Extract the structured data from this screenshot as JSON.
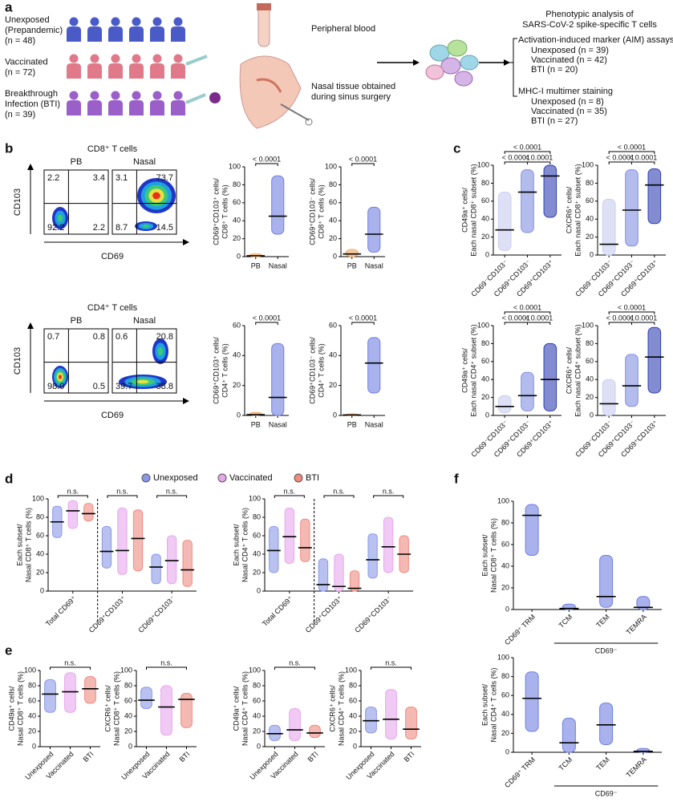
{
  "panel_a": {
    "label": "a",
    "groups": [
      {
        "name": [
          "Unexposed",
          "(Prepandemic)"
        ],
        "n": "(n = 48)"
      },
      {
        "name": [
          "Vaccinated"
        ],
        "n": "(n = 72)"
      },
      {
        "name": [
          "Breakthrough",
          "Infection (BTI)"
        ],
        "n": "(n = 39)"
      }
    ],
    "sample_labels": {
      "blood": "Peripheral blood",
      "nasal": [
        "Nasal tissue obtained",
        "during sinus surgery"
      ]
    },
    "analysis": {
      "title": [
        "Phenotypic analysis of",
        "SARS-CoV-2 spike-specific T cells"
      ],
      "assays": [
        {
          "name": "Activation-induced marker (AIM) assays",
          "items": [
            "Unexposed (n = 39)",
            "Vaccinated (n = 42)",
            "BTI (n = 20)"
          ]
        },
        {
          "name": "MHC-I multimer staining",
          "items": [
            "Unexposed (n = 8)",
            "Vaccinated (n = 35)",
            "BTI (n = 27)"
          ]
        }
      ]
    }
  },
  "panel_b": {
    "label": "b",
    "rows": [
      {
        "title": "CD8⁺ T cells",
        "flow": {
          "samples": [
            "PB",
            "Nasal"
          ],
          "quadrants": [
            [
              "2.2",
              "3.4",
              "92.2",
              "2.2"
            ],
            [
              "3.1",
              "73.7",
              "8.7",
              "14.5"
            ]
          ],
          "xlabel": "CD69",
          "ylabel": "CD103"
        },
        "plots": [
          {
            "ylabel": [
              "CD69⁺CD103⁺ cells/",
              "CD8⁺ T cells (%)"
            ],
            "ylim": [
              0,
              100
            ],
            "yticks": [
              0,
              20,
              40,
              60,
              80,
              100
            ],
            "categories": [
              "PB",
              "Nasal"
            ],
            "groups": [
              {
                "color": [
                  "#f0a860",
                  "#6f7fe0"
                ],
                "median": [
                  1,
                  45
                ],
                "min": [
                  0,
                  25
                ],
                "max": [
                  3,
                  90
                ]
              }
            ],
            "annotations": [
              "< 0.0001"
            ]
          },
          {
            "ylabel": [
              "CD69⁺CD103⁻ cells/",
              "CD8⁺ T cells (%)"
            ],
            "ylim": [
              0,
              100
            ],
            "yticks": [
              0,
              20,
              40,
              60,
              80,
              100
            ],
            "categories": [
              "PB",
              "Nasal"
            ],
            "groups": [
              {
                "color": [
                  "#f0a860",
                  "#6f7fe0"
                ],
                "median": [
                  3,
                  25
                ],
                "min": [
                  0,
                  5
                ],
                "max": [
                  8,
                  55
                ]
              }
            ],
            "annotations": [
              "< 0.0001"
            ]
          }
        ]
      },
      {
        "title": "CD4⁺ T cells",
        "flow": {
          "samples": [
            "PB",
            "Nasal"
          ],
          "quadrants": [
            [
              "0.7",
              "0.8",
              "98.0",
              "0.5"
            ],
            [
              "0.6",
              "20.8",
              "39.7",
              "38.8"
            ]
          ],
          "xlabel": "CD69",
          "ylabel": "CD103"
        },
        "plots": [
          {
            "ylabel": [
              "CD69⁺CD103⁺ cells/",
              "CD4⁺ T cells (%)"
            ],
            "ylim": [
              0,
              60
            ],
            "yticks": [
              0,
              20,
              40,
              60
            ],
            "categories": [
              "PB",
              "Nasal"
            ],
            "groups": [
              {
                "color": [
                  "#f0a860",
                  "#6f7fe0"
                ],
                "median": [
                  0.5,
                  12
                ],
                "min": [
                  0,
                  0
                ],
                "max": [
                  2,
                  48
                ]
              }
            ],
            "annotations": [
              "< 0.0001"
            ]
          },
          {
            "ylabel": [
              "CD69⁺CD103⁻ cells/",
              "CD4⁺ T cells (%)"
            ],
            "ylim": [
              0,
              60
            ],
            "yticks": [
              0,
              20,
              40,
              60
            ],
            "categories": [
              "PB",
              "Nasal"
            ],
            "groups": [
              {
                "color": [
                  "#f0a860",
                  "#6f7fe0"
                ],
                "median": [
                  0.3,
                  35
                ],
                "min": [
                  0,
                  15
                ],
                "max": [
                  1,
                  52
                ]
              }
            ],
            "annotations": [
              "< 0.0001"
            ]
          }
        ]
      }
    ]
  },
  "panel_c": {
    "label": "c",
    "plots": [
      {
        "ylabel": [
          "CD49a⁺ cells/",
          "Each nasal CD8⁺ subset (%)"
        ],
        "ylim": [
          0,
          100
        ],
        "yticks": [
          0,
          20,
          40,
          60,
          80,
          100
        ],
        "categories": [
          "CD69⁻CD103⁻",
          "CD69⁺CD103⁻",
          "CD69⁺CD103⁺"
        ],
        "groups": [
          {
            "color": [
              "#c8cdf0",
              "#8090e0",
              "#3040b0"
            ],
            "median": [
              28,
              70,
              88
            ],
            "min": [
              5,
              25,
              42
            ],
            "max": [
              70,
              95,
              100
            ]
          }
        ],
        "annotations": [
          "< 0.0001",
          "< 0.0001",
          "< 0.0001"
        ]
      },
      {
        "ylabel": [
          "CXCR6⁺ cells/",
          "Each nasal CD8⁺ subset (%)"
        ],
        "ylim": [
          0,
          100
        ],
        "yticks": [
          0,
          20,
          40,
          60,
          80,
          100
        ],
        "categories": [
          "CD69⁻CD103⁻",
          "CD69⁺CD103⁻",
          "CD69⁺CD103⁺"
        ],
        "groups": [
          {
            "color": [
              "#c8cdf0",
              "#8090e0",
              "#3040b0"
            ],
            "median": [
              12,
              50,
              78
            ],
            "min": [
              0,
              10,
              35
            ],
            "max": [
              62,
              95,
              96
            ]
          }
        ],
        "annotations": [
          "< 0.0001",
          "< 0.0001",
          "< 0.0001"
        ]
      },
      {
        "ylabel": [
          "CD49a⁺ cells/",
          "Each nasal CD4⁺ subset (%)"
        ],
        "ylim": [
          0,
          100
        ],
        "yticks": [
          0,
          20,
          40,
          60,
          80,
          100
        ],
        "categories": [
          "CD69⁻CD103⁻",
          "CD69⁺CD103⁻",
          "CD69⁺CD103⁺"
        ],
        "groups": [
          {
            "color": [
              "#c8cdf0",
              "#8090e0",
              "#3040b0"
            ],
            "median": [
              10,
              22,
              40
            ],
            "min": [
              3,
              5,
              5
            ],
            "max": [
              22,
              48,
              80
            ]
          }
        ],
        "annotations": [
          "< 0.0001",
          "< 0.0001",
          "< 0.0001"
        ]
      },
      {
        "ylabel": [
          "CXCR6⁺ cells/",
          "Each nasal CD4⁺ subset (%)"
        ],
        "ylim": [
          0,
          100
        ],
        "yticks": [
          0,
          20,
          40,
          60,
          80,
          100
        ],
        "categories": [
          "CD69⁻CD103⁻",
          "CD69⁺CD103⁻",
          "CD69⁺CD103⁺"
        ],
        "groups": [
          {
            "color": [
              "#c8cdf0",
              "#8090e0",
              "#3040b0"
            ],
            "median": [
              13,
              33,
              65
            ],
            "min": [
              0,
              10,
              25
            ],
            "max": [
              40,
              68,
              98
            ]
          }
        ],
        "annotations": [
          "< 0.0001",
          "< 0.0001",
          "< 0.0001"
        ]
      }
    ]
  },
  "panel_d": {
    "label": "d",
    "legend": [
      {
        "name": "Unexposed",
        "color": "#8a98e6"
      },
      {
        "name": "Vaccinated",
        "color": "#e6a6ec"
      },
      {
        "name": "BTI",
        "color": "#ee8a80"
      }
    ],
    "plots": [
      {
        "ylabel": [
          "Each subset/",
          "Nasal CD8⁺ T cells (%)"
        ],
        "ylim": [
          0,
          100
        ],
        "yticks": [
          0,
          20,
          40,
          60,
          80,
          100
        ],
        "categories": [
          "Total CD69⁺",
          "CD69⁺CD103⁺",
          "CD69⁺CD103⁻"
        ],
        "groups": [
          {
            "median": [
              75,
              43,
              26
            ],
            "min": [
              58,
              25,
              8
            ],
            "max": [
              92,
              70,
              40
            ]
          },
          {
            "median": [
              87,
              44,
              33
            ],
            "min": [
              68,
              18,
              8
            ],
            "max": [
              98,
              90,
              60
            ]
          },
          {
            "median": [
              84,
              57,
              23
            ],
            "min": [
              76,
              22,
              5
            ],
            "max": [
              95,
              88,
              55
            ]
          }
        ],
        "annotations": [
          "n.s.",
          "n.s.",
          "n.s."
        ]
      },
      {
        "ylabel": [
          "Each subset/",
          "Nasal CD4⁺ T cells (%)"
        ],
        "ylim": [
          0,
          100
        ],
        "yticks": [
          0,
          20,
          40,
          60,
          80,
          100
        ],
        "categories": [
          "Total CD69⁺",
          "CD69⁺CD103⁺",
          "CD69⁺CD103⁻"
        ],
        "groups": [
          {
            "median": [
              44,
              7,
              34
            ],
            "min": [
              20,
              0,
              14
            ],
            "max": [
              70,
              35,
              62
            ]
          },
          {
            "median": [
              59,
              5,
              48
            ],
            "min": [
              30,
              0,
              20
            ],
            "max": [
              90,
              40,
              80
            ]
          },
          {
            "median": [
              47,
              3,
              40
            ],
            "min": [
              32,
              0,
              20
            ],
            "max": [
              78,
              22,
              60
            ]
          }
        ],
        "annotations": [
          "n.s.",
          "n.s.",
          "n.s."
        ]
      }
    ]
  },
  "panel_e": {
    "label": "e",
    "plots": [
      {
        "ylabel": [
          "CD49a⁺ cells/",
          "Nasal CD8⁺ T cells (%)"
        ],
        "ylim": [
          0,
          100
        ],
        "yticks": [
          0,
          20,
          40,
          60,
          80,
          100
        ],
        "categories": [
          "Unexposed",
          "Vaccinated",
          "BTI"
        ],
        "groups": [
          {
            "median": [
              69,
              72,
              76
            ],
            "min": [
              45,
              45,
              57
            ],
            "max": [
              88,
              97,
              92
            ]
          }
        ],
        "annotations": [
          "n.s."
        ]
      },
      {
        "ylabel": [
          "CXCR6⁺ cells/",
          "Nasal CD8⁺ T cells (%)"
        ],
        "ylim": [
          0,
          100
        ],
        "yticks": [
          0,
          20,
          40,
          60,
          80,
          100
        ],
        "categories": [
          "Unexposed",
          "Vaccinated",
          "BTI"
        ],
        "groups": [
          {
            "median": [
              61,
              52,
              62
            ],
            "min": [
              50,
              15,
              25
            ],
            "max": [
              78,
              80,
              70
            ]
          }
        ],
        "annotations": [
          "n.s."
        ]
      },
      {
        "ylabel": [
          "CD49a⁺ cells/",
          "Nasal CD4⁺ T cells (%)"
        ],
        "ylim": [
          0,
          100
        ],
        "yticks": [
          0,
          20,
          40,
          60,
          80,
          100
        ],
        "categories": [
          "Unexposed",
          "Vaccinated",
          "BTI"
        ],
        "groups": [
          {
            "median": [
              17,
              22,
              18
            ],
            "min": [
              8,
              8,
              12
            ],
            "max": [
              28,
              50,
              28
            ]
          }
        ],
        "annotations": [
          "n.s."
        ]
      },
      {
        "ylabel": [
          "CXCR6⁺ cells/",
          "Nasal CD4⁺ T cells (%)"
        ],
        "ylim": [
          0,
          100
        ],
        "yticks": [
          0,
          20,
          40,
          60,
          80,
          100
        ],
        "categories": [
          "Unexposed",
          "Vaccinated",
          "BTI"
        ],
        "groups": [
          {
            "median": [
              34,
              36,
              23
            ],
            "min": [
              18,
              10,
              10
            ],
            "max": [
              52,
              75,
              52
            ]
          }
        ],
        "annotations": [
          "n.s."
        ]
      }
    ]
  },
  "panel_f": {
    "label": "f",
    "plots": [
      {
        "ylabel": [
          "Each subset/",
          "Nasal CD8⁺ T cells (%)"
        ],
        "ylim": [
          0,
          100
        ],
        "yticks": [
          0,
          20,
          40,
          60,
          80,
          100
        ],
        "categories": [
          "CD69⁺ TRM",
          "TCM",
          "TEM",
          "TEMRA"
        ],
        "group_label": "CD69⁻",
        "groups": [
          {
            "color": "#6f7fe0",
            "median": [
              87,
              1,
              12,
              2
            ],
            "min": [
              50,
              0,
              2,
              0
            ],
            "max": [
              97,
              5,
              50,
              12
            ]
          }
        ]
      },
      {
        "ylabel": [
          "Each subset/",
          "Nasal CD4⁺ T cells (%)"
        ],
        "ylim": [
          0,
          100
        ],
        "yticks": [
          0,
          20,
          40,
          60,
          80,
          100
        ],
        "categories": [
          "CD69⁺ TRM",
          "TCM",
          "TEM",
          "TEMRA"
        ],
        "group_label": "CD69⁻",
        "groups": [
          {
            "color": "#6f7fe0",
            "median": [
              57,
              10,
              29,
              1
            ],
            "min": [
              22,
              0,
              8,
              0
            ],
            "max": [
              85,
              36,
              52,
              4
            ]
          }
        ]
      }
    ]
  }
}
